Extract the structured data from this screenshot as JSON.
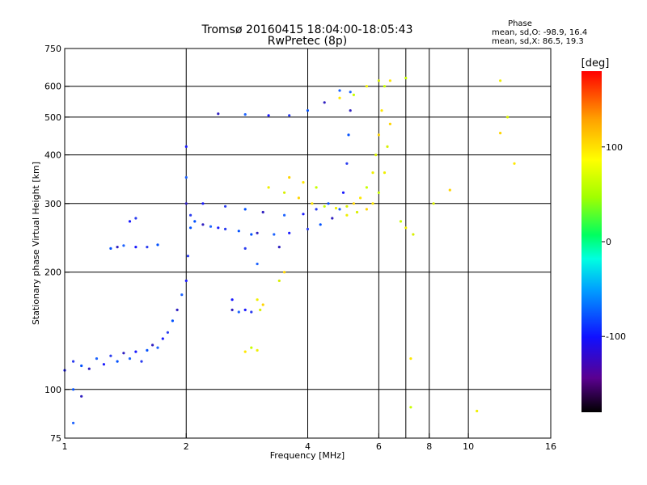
{
  "chart_data": {
    "type": "scatter",
    "title_line1": "Tromsø 20160415 18:04:00-18:05:43",
    "title_line2": "RwPretec (8p)",
    "xlabel": "Frequency [MHz]",
    "ylabel": "Stationary phase Virtual Height [km]",
    "xscale": "log",
    "yscale": "log",
    "xlim": [
      1,
      16
    ],
    "ylim": [
      75,
      750
    ],
    "x_ticks": [
      1,
      2,
      4,
      6,
      8,
      10,
      16
    ],
    "x_tick_labels": [
      "1",
      "2",
      "4",
      "6",
      "8",
      "10",
      "16"
    ],
    "x_gridlines": [
      2,
      4,
      6,
      7,
      8,
      10
    ],
    "y_ticks": [
      75,
      100,
      200,
      300,
      400,
      500,
      600,
      750
    ],
    "y_tick_labels": [
      "75",
      "100",
      "200",
      "300",
      "400",
      "500",
      "600",
      "750"
    ],
    "y_gridlines": [
      100,
      200,
      300,
      400,
      500,
      600
    ],
    "grid": true,
    "legend": "none",
    "phase_stats": {
      "title": "Phase",
      "line_o": "mean, sd,O: -98.9, 16.4",
      "line_x": "mean, sd,X:  86.5, 19.3"
    },
    "colorbar": {
      "label": "[deg]",
      "range": [
        -180,
        180
      ],
      "ticks": [
        100,
        0,
        -100
      ],
      "tick_labels": [
        "100",
        "0",
        "-100"
      ]
    },
    "series": [
      {
        "name": "O",
        "points": [
          [
            1.0,
            112
          ],
          [
            1.05,
            118
          ],
          [
            1.1,
            115
          ],
          [
            1.15,
            113
          ],
          [
            1.2,
            120
          ],
          [
            1.25,
            116
          ],
          [
            1.3,
            122
          ],
          [
            1.35,
            118
          ],
          [
            1.4,
            124
          ],
          [
            1.45,
            120
          ],
          [
            1.5,
            125
          ],
          [
            1.55,
            118
          ],
          [
            1.6,
            126
          ],
          [
            1.65,
            130
          ],
          [
            1.7,
            128
          ],
          [
            1.75,
            135
          ],
          [
            1.8,
            140
          ],
          [
            1.85,
            150
          ],
          [
            1.9,
            160
          ],
          [
            1.95,
            175
          ],
          [
            2.0,
            190
          ],
          [
            2.02,
            220
          ],
          [
            2.05,
            260
          ],
          [
            2.0,
            300
          ],
          [
            2.0,
            350
          ],
          [
            2.0,
            420
          ],
          [
            2.05,
            280
          ],
          [
            2.1,
            270
          ],
          [
            2.2,
            265
          ],
          [
            2.3,
            262
          ],
          [
            2.4,
            260
          ],
          [
            2.5,
            258
          ],
          [
            2.7,
            255
          ],
          [
            3.0,
            252
          ],
          [
            3.3,
            250
          ],
          [
            3.6,
            252
          ],
          [
            4.0,
            258
          ],
          [
            4.3,
            265
          ],
          [
            4.6,
            275
          ],
          [
            4.8,
            290
          ],
          [
            4.9,
            320
          ],
          [
            5.0,
            380
          ],
          [
            5.05,
            450
          ],
          [
            5.1,
            520
          ],
          [
            5.1,
            580
          ],
          [
            2.2,
            300
          ],
          [
            2.5,
            295
          ],
          [
            2.8,
            290
          ],
          [
            3.1,
            285
          ],
          [
            3.5,
            280
          ],
          [
            3.9,
            282
          ],
          [
            4.2,
            290
          ],
          [
            4.5,
            300
          ],
          [
            2.4,
            510
          ],
          [
            2.8,
            508
          ],
          [
            3.2,
            505
          ],
          [
            3.6,
            505
          ],
          [
            4.0,
            520
          ],
          [
            4.4,
            545
          ],
          [
            4.8,
            585
          ],
          [
            1.45,
            270
          ],
          [
            1.5,
            275
          ],
          [
            1.3,
            230
          ],
          [
            1.35,
            232
          ],
          [
            1.4,
            234
          ],
          [
            1.5,
            232
          ],
          [
            1.6,
            232
          ],
          [
            1.7,
            235
          ],
          [
            2.6,
            160
          ],
          [
            2.7,
            158
          ],
          [
            2.8,
            160
          ],
          [
            2.9,
            158
          ],
          [
            1.05,
            100
          ],
          [
            1.1,
            96
          ],
          [
            1.05,
            82
          ],
          [
            2.6,
            170
          ],
          [
            2.8,
            230
          ],
          [
            2.9,
            250
          ],
          [
            3.4,
            232
          ],
          [
            3.0,
            210
          ]
        ]
      },
      {
        "name": "X",
        "points": [
          [
            3.2,
            330
          ],
          [
            3.5,
            320
          ],
          [
            3.8,
            310
          ],
          [
            4.1,
            300
          ],
          [
            4.4,
            295
          ],
          [
            4.7,
            292
          ],
          [
            5.0,
            295
          ],
          [
            5.2,
            300
          ],
          [
            5.4,
            310
          ],
          [
            5.6,
            330
          ],
          [
            5.8,
            360
          ],
          [
            5.9,
            400
          ],
          [
            6.0,
            450
          ],
          [
            6.1,
            520
          ],
          [
            6.2,
            600
          ],
          [
            5.0,
            280
          ],
          [
            5.3,
            285
          ],
          [
            5.6,
            290
          ],
          [
            5.8,
            300
          ],
          [
            6.0,
            320
          ],
          [
            6.2,
            360
          ],
          [
            6.3,
            420
          ],
          [
            6.4,
            480
          ],
          [
            4.8,
            560
          ],
          [
            5.2,
            570
          ],
          [
            5.6,
            600
          ],
          [
            6.0,
            620
          ],
          [
            3.6,
            350
          ],
          [
            3.9,
            340
          ],
          [
            4.2,
            330
          ],
          [
            3.0,
            170
          ],
          [
            3.05,
            160
          ],
          [
            3.1,
            165
          ],
          [
            2.8,
            125
          ],
          [
            2.9,
            128
          ],
          [
            3.0,
            126
          ],
          [
            3.4,
            190
          ],
          [
            3.5,
            200
          ],
          [
            6.4,
            620
          ],
          [
            7.0,
            630
          ],
          [
            12.0,
            620
          ],
          [
            12.5,
            500
          ],
          [
            12.0,
            455
          ],
          [
            7.2,
            120
          ],
          [
            7.2,
            90
          ],
          [
            10.5,
            88
          ],
          [
            8.2,
            300
          ],
          [
            9.0,
            325
          ],
          [
            13.0,
            380
          ],
          [
            6.8,
            270
          ],
          [
            7.0,
            260
          ],
          [
            7.3,
            250
          ]
        ]
      }
    ]
  }
}
